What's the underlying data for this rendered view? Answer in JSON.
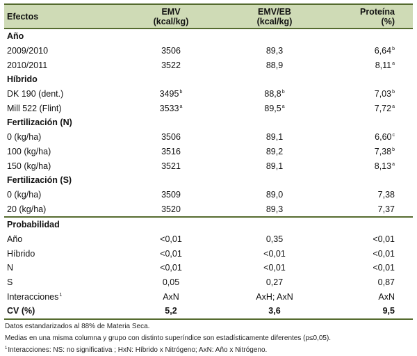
{
  "table": {
    "headers": [
      {
        "line1": "Efectos",
        "line2": ""
      },
      {
        "line1": "EMV",
        "line2": "(kcal/kg)"
      },
      {
        "line1": "EMV/EB",
        "line2": "(kcal/kg)"
      },
      {
        "line1": "Proteína",
        "line2": "(%)"
      }
    ],
    "sections": [
      {
        "title": "Año",
        "rows": [
          {
            "label": "2009/2010",
            "emv": "3506",
            "emv_sup": "",
            "emveb": "89,3",
            "emveb_sup": "",
            "prot": "6,64",
            "prot_sup": "b"
          },
          {
            "label": "2010/2011",
            "emv": "3522",
            "emv_sup": "",
            "emveb": "88,9",
            "emveb_sup": "",
            "prot": "8,11",
            "prot_sup": "a"
          }
        ]
      },
      {
        "title": "Híbrido",
        "rows": [
          {
            "label": "DK 190 (dent.)",
            "emv": "3495",
            "emv_sup": "b",
            "emveb": "88,8",
            "emveb_sup": "b",
            "prot": "7,03",
            "prot_sup": "b"
          },
          {
            "label": "Mill 522 (Flint)",
            "emv": "3533",
            "emv_sup": "a",
            "emveb": "89,5",
            "emveb_sup": "a",
            "prot": "7,72",
            "prot_sup": "a"
          }
        ]
      },
      {
        "title": "Fertilización (N)",
        "rows": [
          {
            "label": "0 (kg/ha)",
            "emv": "3506",
            "emv_sup": "",
            "emveb": "89,1",
            "emveb_sup": "",
            "prot": "6,60",
            "prot_sup": "c"
          },
          {
            "label": "100 (kg/ha)",
            "emv": "3516",
            "emv_sup": "",
            "emveb": "89,2",
            "emveb_sup": "",
            "prot": "7,38",
            "prot_sup": "b"
          },
          {
            "label": "150 (kg/ha)",
            "emv": "3521",
            "emv_sup": "",
            "emveb": "89,1",
            "emveb_sup": "",
            "prot": "8,13",
            "prot_sup": "a"
          }
        ]
      },
      {
        "title": "Fertilización (S)",
        "rows": [
          {
            "label": "0 (kg/ha)",
            "emv": "3509",
            "emv_sup": "",
            "emveb": "89,0",
            "emveb_sup": "",
            "prot": "7,38",
            "prot_sup": ""
          },
          {
            "label": "20 (kg/ha)",
            "emv": "3520",
            "emv_sup": "",
            "emveb": "89,3",
            "emveb_sup": "",
            "prot": "7,37",
            "prot_sup": ""
          }
        ]
      }
    ],
    "probability": {
      "title": "Probabilidad",
      "rows": [
        {
          "label": "Año",
          "label_sup": "",
          "emv": "<0,01",
          "emveb": "0,35",
          "prot": "<0,01"
        },
        {
          "label": "Híbrido",
          "label_sup": "",
          "emv": "<0,01",
          "emveb": "<0,01",
          "prot": "<0,01"
        },
        {
          "label": "N",
          "label_sup": "",
          "emv": "<0,01",
          "emveb": "<0,01",
          "prot": "<0,01"
        },
        {
          "label": "S",
          "label_sup": "",
          "emv": "0,05",
          "emveb": "0,27",
          "prot": "0,87"
        },
        {
          "label": "Interacciones",
          "label_sup": "1",
          "emv": "AxN",
          "emveb": "AxH; AxN",
          "prot": "AxN"
        }
      ]
    },
    "cv": {
      "label": "CV (%)",
      "emv": "5,2",
      "emveb": "3,6",
      "prot": "9,5"
    }
  },
  "notes": {
    "line1": "Datos estandarizados al 88% de Materia Seca.",
    "line2": "Medias en una misma columna y grupo con distinto superíndice son estadísticamente diferentes (p≤0,05).",
    "line3_sup": "1",
    "line3": "Interacciones: NS: no significativa ; HxN: Híbrido x Nitrógeno; AxN: Año x Nitrógeno."
  },
  "colors": {
    "header_bg": "#cfdbb6",
    "rule": "#556b2f"
  }
}
